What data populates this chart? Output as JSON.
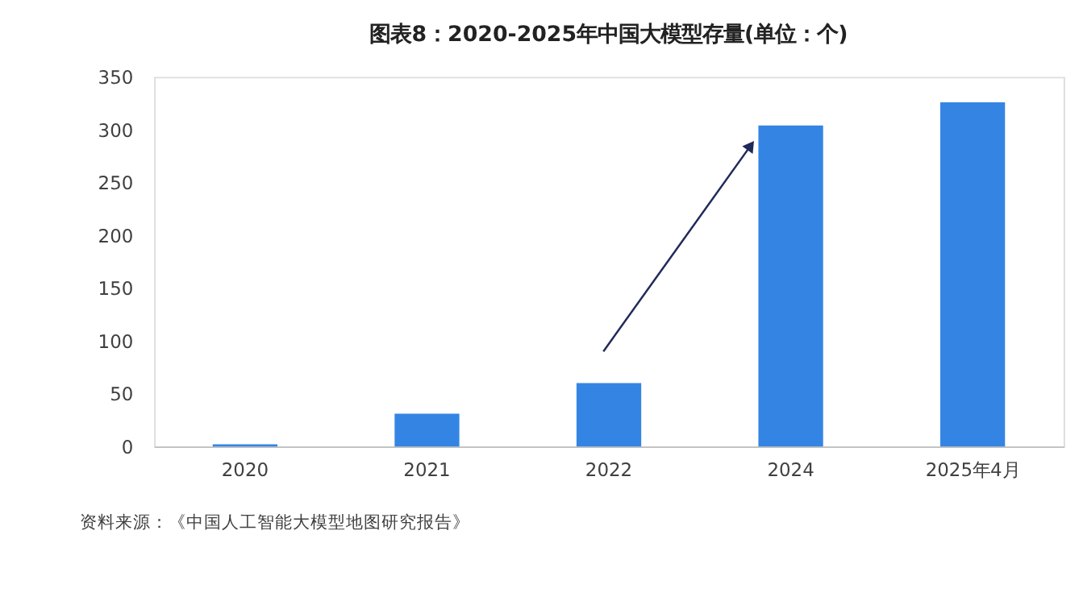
{
  "chart_data": {
    "type": "bar",
    "title": "图表8：2020-2025年中国大模型存量(单位：个)",
    "categories": [
      "2020",
      "2021",
      "2022",
      "2024",
      "2025年4月"
    ],
    "values": [
      2,
      31,
      60,
      304,
      326
    ],
    "color": "#3485e3",
    "ylim": [
      0,
      350
    ],
    "yticks": [
      0,
      50,
      100,
      150,
      200,
      250,
      300,
      350
    ],
    "grid": false,
    "legend": false,
    "annotations": [
      "资料来源：《中国人工智能大模型地图研究报告》"
    ]
  }
}
